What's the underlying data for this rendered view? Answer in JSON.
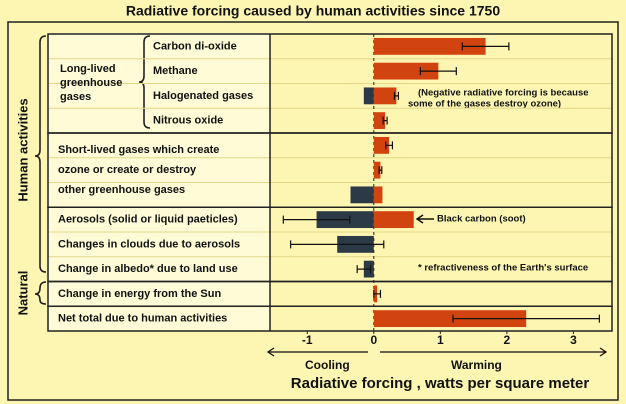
{
  "chart_data": {
    "type": "bar",
    "orientation": "horizontal",
    "title": "Radiative forcing caused by human activities since 1750",
    "categories": [
      "Carbon di-oxide",
      "Methane",
      "Halogenated gases",
      "Nitrous oxide",
      null,
      null,
      null,
      "Aerosols (solid or liquid paeticles)",
      "Changes in clouds due to aerosols",
      "Change in albedo* due to land use",
      "Change in energy from the Sun",
      "Net total due to human activities"
    ],
    "group_labels": [
      {
        "lines": [
          "Long-lived",
          "greenhouse",
          "gases"
        ]
      },
      {
        "lines": [
          "Short-lived gases which create",
          "ozone or create or destroy",
          "other greenhouse gases"
        ]
      }
    ],
    "side_labels": [
      "Human activities",
      "Natural"
    ],
    "series": [
      {
        "color": "#d2440f",
        "values": [
          1.68,
          0.97,
          0.34,
          0.17,
          0.23,
          0.1,
          0.13,
          0.6,
          null,
          null,
          0.05,
          2.29
        ],
        "errors": [
          0.35,
          0.27,
          0.03,
          0.03,
          0.05,
          0.02,
          null,
          null,
          null,
          null,
          0.05,
          1.1
        ]
      },
      {
        "color": "#2c3947",
        "values": [
          null,
          null,
          -0.15,
          null,
          null,
          null,
          -0.35,
          -0.86,
          -0.55,
          -0.15,
          null,
          null
        ],
        "errors": [
          null,
          null,
          null,
          null,
          null,
          null,
          null,
          0.5,
          0.7,
          0.1,
          null,
          null
        ]
      }
    ],
    "xlim": [
      -1.56,
      3.58
    ],
    "xticks": [
      -1,
      0,
      1,
      2,
      3
    ],
    "xlabel": "Radiative forcing , watts per square meter",
    "direction_labels": [
      "Cooling",
      "Warming"
    ],
    "annotations": [
      "(Negative radiative forcing is because",
      "some of the gases destroy ozone)",
      "Black carbon (soot)",
      "* refractiveness of the Earth's surface"
    ]
  }
}
